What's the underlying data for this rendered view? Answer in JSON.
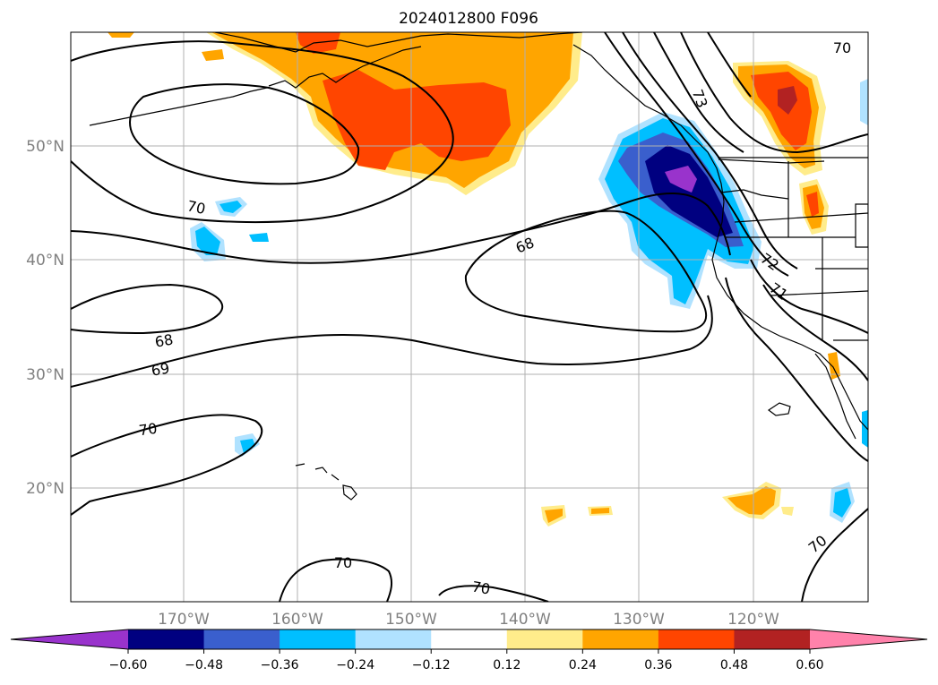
{
  "title": "2024012800 F096",
  "lat_labels": [
    "50°N",
    "40°N",
    "30°N",
    "20°N"
  ],
  "lon_labels": [
    "170°W",
    "160°W",
    "150°W",
    "140°W",
    "130°W",
    "120°W"
  ],
  "colorbar": {
    "colors": [
      "#9933cc",
      "#000080",
      "#3a5fcd",
      "#00bfff",
      "#b0e2ff",
      "#ffffff",
      "#ffec8b",
      "#ffa500",
      "#ff4500",
      "#b22222",
      "#ff82ab"
    ],
    "ticks": [
      "−0.60",
      "−0.48",
      "−0.36",
      "−0.24",
      "−0.12",
      "0.12",
      "0.24",
      "0.36",
      "0.48",
      "0.60"
    ]
  },
  "contour_labels": [
    "70",
    "68",
    "69",
    "70",
    "68",
    "72",
    "71",
    "73",
    "70",
    "70",
    "70",
    "70"
  ]
}
